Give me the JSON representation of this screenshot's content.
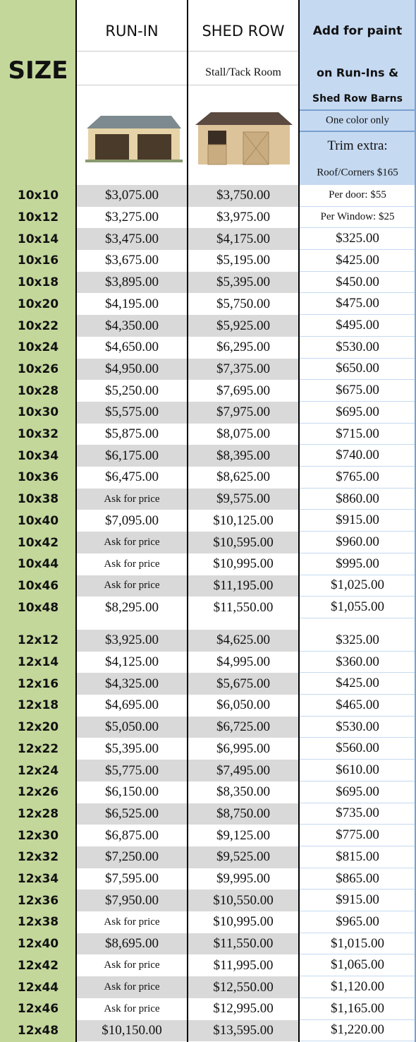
{
  "header": {
    "size": "SIZE",
    "run_in": "RUN-IN",
    "shed_row": "SHED ROW",
    "shed_row_sub": "Stall/Tack Room",
    "paint_lines": [
      "Add for paint",
      "on Run-Ins &",
      "Shed Row Barns",
      "One color only",
      "Trim extra:",
      "Roof/Corners $165"
    ]
  },
  "table": {
    "groups": [
      {
        "rows": [
          [
            "10x10",
            "$3,075.00",
            "$3,750.00",
            "Per door: $55"
          ],
          [
            "10x12",
            "$3,275.00",
            "$3,975.00",
            "Per Window: $25"
          ],
          [
            "10x14",
            "$3,475.00",
            "$4,175.00",
            "$325.00"
          ],
          [
            "10x16",
            "$3,675.00",
            "$5,195.00",
            "$425.00"
          ],
          [
            "10x18",
            "$3,895.00",
            "$5,395.00",
            "$450.00"
          ],
          [
            "10x20",
            "$4,195.00",
            "$5,750.00",
            "$475.00"
          ],
          [
            "10x22",
            "$4,350.00",
            "$5,925.00",
            "$495.00"
          ],
          [
            "10x24",
            "$4,650.00",
            "$6,295.00",
            "$530.00"
          ],
          [
            "10x26",
            "$4,950.00",
            "$7,375.00",
            "$650.00"
          ],
          [
            "10x28",
            "$5,250.00",
            "$7,695.00",
            "$675.00"
          ],
          [
            "10x30",
            "$5,575.00",
            "$7,975.00",
            "$695.00"
          ],
          [
            "10x32",
            "$5,875.00",
            "$8,075.00",
            "$715.00"
          ],
          [
            "10x34",
            "$6,175.00",
            "$8,395.00",
            "$740.00"
          ],
          [
            "10x36",
            "$6,475.00",
            "$8,625.00",
            "$765.00"
          ],
          [
            "10x38",
            "Ask for price",
            "$9,575.00",
            "$860.00"
          ],
          [
            "10x40",
            "$7,095.00",
            "$10,125.00",
            "$915.00"
          ],
          [
            "10x42",
            "Ask for price",
            "$10,595.00",
            "$960.00"
          ],
          [
            "10x44",
            "Ask for price",
            "$10,995.00",
            "$995.00"
          ],
          [
            "10x46",
            "Ask for price",
            "$11,195.00",
            "$1,025.00"
          ],
          [
            "10x48",
            "$8,295.00",
            "$11,550.00",
            "$1,055.00"
          ]
        ]
      },
      {
        "rows": [
          [
            "12x12",
            "$3,925.00",
            "$4,625.00",
            "$325.00"
          ],
          [
            "12x14",
            "$4,125.00",
            "$4,995.00",
            "$360.00"
          ],
          [
            "12x16",
            "$4,325.00",
            "$5,675.00",
            "$425.00"
          ],
          [
            "12x18",
            "$4,695.00",
            "$6,050.00",
            "$465.00"
          ],
          [
            "12x20",
            "$5,050.00",
            "$6,725.00",
            "$530.00"
          ],
          [
            "12x22",
            "$5,395.00",
            "$6,995.00",
            "$560.00"
          ],
          [
            "12x24",
            "$5,775.00",
            "$7,495.00",
            "$610.00"
          ],
          [
            "12x26",
            "$6,150.00",
            "$8,350.00",
            "$695.00"
          ],
          [
            "12x28",
            "$6,525.00",
            "$8,750.00",
            "$735.00"
          ],
          [
            "12x30",
            "$6,875.00",
            "$9,125.00",
            "$775.00"
          ],
          [
            "12x32",
            "$7,250.00",
            "$9,525.00",
            "$815.00"
          ],
          [
            "12x34",
            "$7,595.00",
            "$9,995.00",
            "$865.00"
          ],
          [
            "12x36",
            "$7,950.00",
            "$10,550.00",
            "$915.00"
          ],
          [
            "12x38",
            "Ask for price",
            "$10,995.00",
            "$965.00"
          ],
          [
            "12x40",
            "$8,695.00",
            "$11,550.00",
            "$1,015.00"
          ],
          [
            "12x42",
            "Ask for price",
            "$11,995.00",
            "$1,065.00"
          ],
          [
            "12x44",
            "Ask for price",
            "$12,550.00",
            "$1,120.00"
          ],
          [
            "12x46",
            "Ask for price",
            "$12,995.00",
            "$1,165.00"
          ],
          [
            "12x48",
            "$10,150.00",
            "$13,595.00",
            "$1,220.00"
          ]
        ]
      }
    ]
  }
}
